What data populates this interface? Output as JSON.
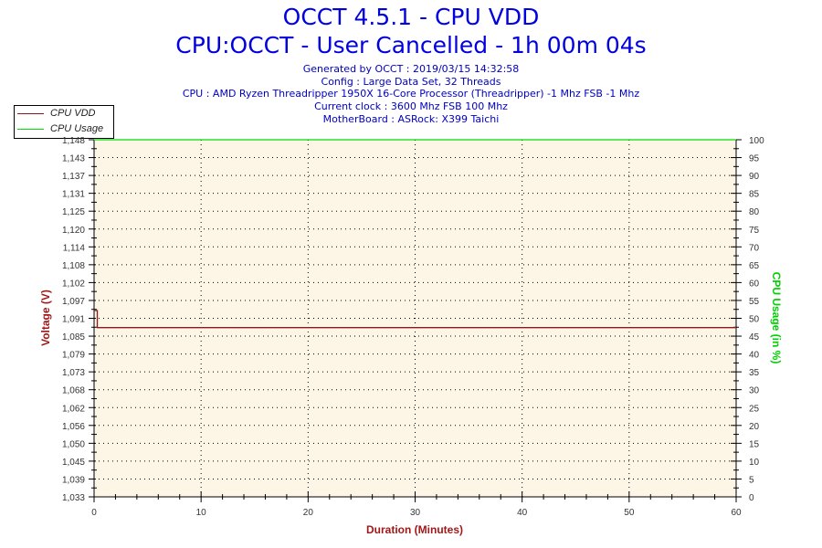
{
  "header": {
    "title": "OCCT 4.5.1 - CPU VDD",
    "subtitle": "CPU:OCCT - User Cancelled - 1h 00m 04s",
    "info_lines": [
      "Generated by OCCT : 2019/03/15 14:32:58",
      "Config : Large Data Set, 32 Threads",
      "CPU : AMD Ryzen Threadripper 1950X 16-Core Processor (Threadripper) -1 Mhz FSB -1 Mhz",
      "Current clock : 3600 Mhz FSB 100 Mhz",
      "MotherBoard : ASRock: X399 Taichi"
    ]
  },
  "legend": [
    {
      "label": "CPU VDD",
      "color": "#8b1a1a"
    },
    {
      "label": "CPU Usage",
      "color": "#00e000"
    }
  ],
  "colors": {
    "plot_bg": "#fdf5e6",
    "vdd": "#8b1a1a",
    "usage": "#00e000",
    "title": "#0000e0",
    "axis_label_left": "#a01818",
    "axis_label_right": "#00d000"
  },
  "chart_data": {
    "type": "line",
    "title": "OCCT 4.5.1 - CPU VDD",
    "xlabel": "Duration (Minutes)",
    "ylabel": "Voltage (V)",
    "y2label": "CPU Usage (in %)",
    "xlim": [
      0,
      60
    ],
    "ylim": [
      1.033,
      1.148
    ],
    "y2lim": [
      0,
      100
    ],
    "x_ticks": [
      "0",
      "10",
      "20",
      "30",
      "40",
      "50",
      "60"
    ],
    "y_ticks": [
      "1,033",
      "1,039",
      "1,045",
      "1,050",
      "1,056",
      "1,062",
      "1,068",
      "1,073",
      "1,079",
      "1,085",
      "1,091",
      "1,097",
      "1,102",
      "1,108",
      "1,114",
      "1,120",
      "1,125",
      "1,131",
      "1,137",
      "1,143",
      "1,148"
    ],
    "y2_ticks": [
      "0",
      "5",
      "10",
      "15",
      "20",
      "25",
      "30",
      "35",
      "40",
      "45",
      "50",
      "55",
      "60",
      "65",
      "70",
      "75",
      "80",
      "85",
      "90",
      "95",
      "100"
    ],
    "grid": true,
    "legend_position": "top-left",
    "series": [
      {
        "name": "CPU VDD",
        "axis": "left",
        "x": [
          0,
          0.3,
          0.3,
          60
        ],
        "values": [
          1.093,
          1.093,
          1.0875,
          1.0875
        ]
      },
      {
        "name": "CPU Usage",
        "axis": "right",
        "x": [
          0,
          60
        ],
        "values": [
          100,
          100
        ]
      }
    ]
  }
}
